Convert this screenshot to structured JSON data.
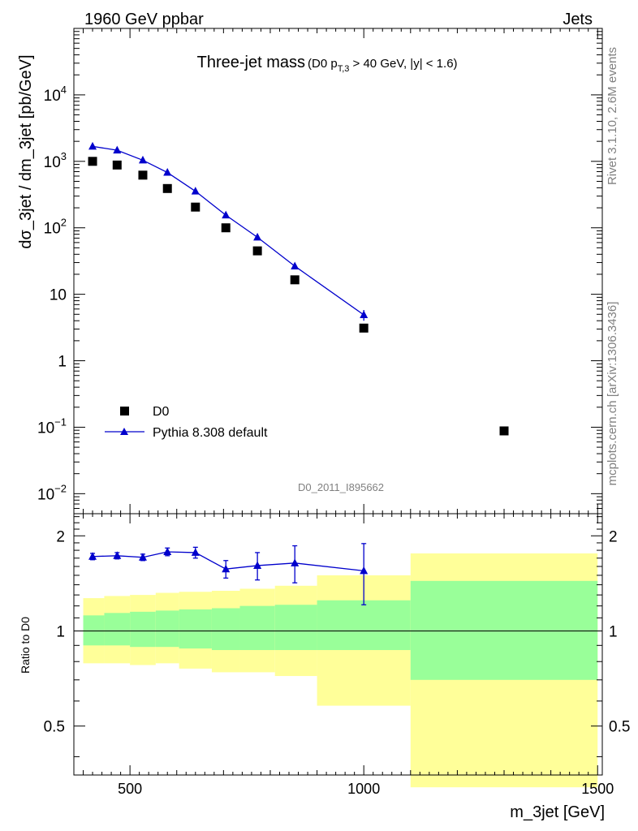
{
  "header": {
    "energy_label": "1960 GeV ppbar",
    "category_label": "Jets",
    "rivet_label": "Rivet 3.1.10,  2.6M events",
    "source_label": "mcplots.cern.ch [arXiv:1306.3436]",
    "analysis_label": "D0_2011_I895662"
  },
  "chart_data": [
    {
      "type": "scatter",
      "title": "Three-jet mass",
      "subtitle_parts": {
        "pre": "(D0 p",
        "sub": "T,3",
        "post": " > 40 GeV, |y| < 1.6)"
      },
      "ylabel": "dσ_3jet / dm_3jet [pb/GeV]",
      "y_scale": "log",
      "xlim": [
        380,
        1510
      ],
      "ylim": [
        0.005,
        100000
      ],
      "y_ticks": [
        {
          "value": 0.01,
          "base": "10",
          "exp": "−2"
        },
        {
          "value": 0.1,
          "base": "10",
          "exp": "−1"
        },
        {
          "value": 1,
          "base": "1",
          "exp": ""
        },
        {
          "value": 10,
          "base": "10",
          "exp": ""
        },
        {
          "value": 100,
          "base": "10",
          "exp": "2"
        },
        {
          "value": 1000,
          "base": "10",
          "exp": "3"
        },
        {
          "value": 10000,
          "base": "10",
          "exp": "4"
        }
      ],
      "legend_position": "bottom-left",
      "series": [
        {
          "name": "D0",
          "marker": "square",
          "color": "#000000",
          "x": [
            420,
            472.5,
            527.5,
            580,
            640,
            705,
            772.5,
            852.5,
            1000,
            1300
          ],
          "y": [
            1000,
            880,
            620,
            390,
            205,
            100,
            45,
            16.5,
            3.1,
            0.088
          ]
        },
        {
          "name": "Pythia 8.308 default",
          "marker": "triangle",
          "color": "#0000cc",
          "x": [
            420,
            472.5,
            527.5,
            580,
            640,
            705,
            772.5,
            852.5,
            1000
          ],
          "y": [
            1680,
            1470,
            1040,
            680,
            355,
            155,
            72,
            26.5,
            4.9
          ],
          "y_err": [
            60,
            50,
            40,
            30,
            17,
            10,
            5,
            2.5,
            0.9
          ]
        }
      ]
    },
    {
      "type": "scatter",
      "ylabel": "Ratio to D0",
      "xlabel": "m_3jet [GeV]",
      "xlim": [
        380,
        1510
      ],
      "ylim": [
        0.35,
        2.35
      ],
      "y_ticks": [
        0.5,
        1,
        2
      ],
      "x_ticks": [
        500,
        1000,
        1500
      ],
      "reference_line": 1,
      "bands": {
        "edges": [
          400,
          445,
          500,
          555,
          605,
          675,
          735,
          810,
          900,
          1100,
          1500
        ],
        "stat_color": "#99ff99",
        "total_color": "#ffff99",
        "stat_low": [
          0.9,
          0.9,
          0.89,
          0.89,
          0.88,
          0.87,
          0.87,
          0.87,
          0.87,
          0.7
        ],
        "stat_high": [
          1.12,
          1.14,
          1.15,
          1.16,
          1.17,
          1.18,
          1.2,
          1.21,
          1.25,
          1.44
        ],
        "total_low": [
          0.79,
          0.79,
          0.78,
          0.79,
          0.76,
          0.74,
          0.74,
          0.72,
          0.58,
          0.32
        ],
        "total_high": [
          1.27,
          1.29,
          1.3,
          1.32,
          1.33,
          1.34,
          1.36,
          1.39,
          1.5,
          1.76
        ]
      },
      "series": [
        {
          "name": "Pythia 8.308 default",
          "color": "#0000cc",
          "x": [
            420,
            472.5,
            527.5,
            580,
            640,
            705,
            772.5,
            852.5,
            1000
          ],
          "y": [
            1.72,
            1.73,
            1.71,
            1.78,
            1.77,
            1.57,
            1.61,
            1.64,
            1.55
          ],
          "y_err": [
            0.04,
            0.04,
            0.04,
            0.05,
            0.07,
            0.1,
            0.16,
            0.22,
            0.34
          ]
        }
      ]
    }
  ]
}
